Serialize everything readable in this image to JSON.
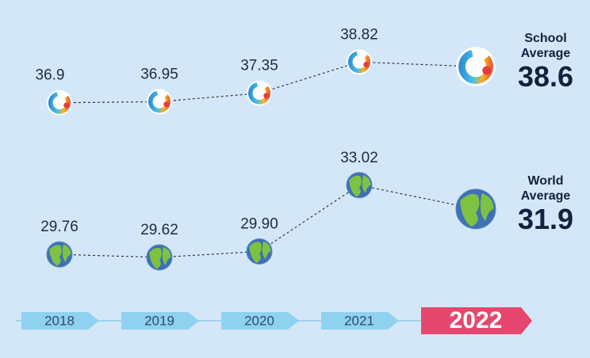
{
  "chart_data": {
    "type": "line",
    "categories": [
      "2018",
      "2019",
      "2020",
      "2021",
      "2022"
    ],
    "series": [
      {
        "name": "School Average",
        "color": "#e63b3b",
        "values": [
          36.9,
          36.95,
          37.35,
          38.82,
          38.6
        ]
      },
      {
        "name": "World Average",
        "color": "#3f6fb5",
        "values": [
          29.76,
          29.62,
          29.9,
          33.02,
          31.9
        ],
        "value_labels": [
          "29.76",
          "29.62",
          "29.90",
          "33.02",
          "31.9"
        ]
      }
    ],
    "ylim": [
      28.5,
      39.5
    ]
  }
}
